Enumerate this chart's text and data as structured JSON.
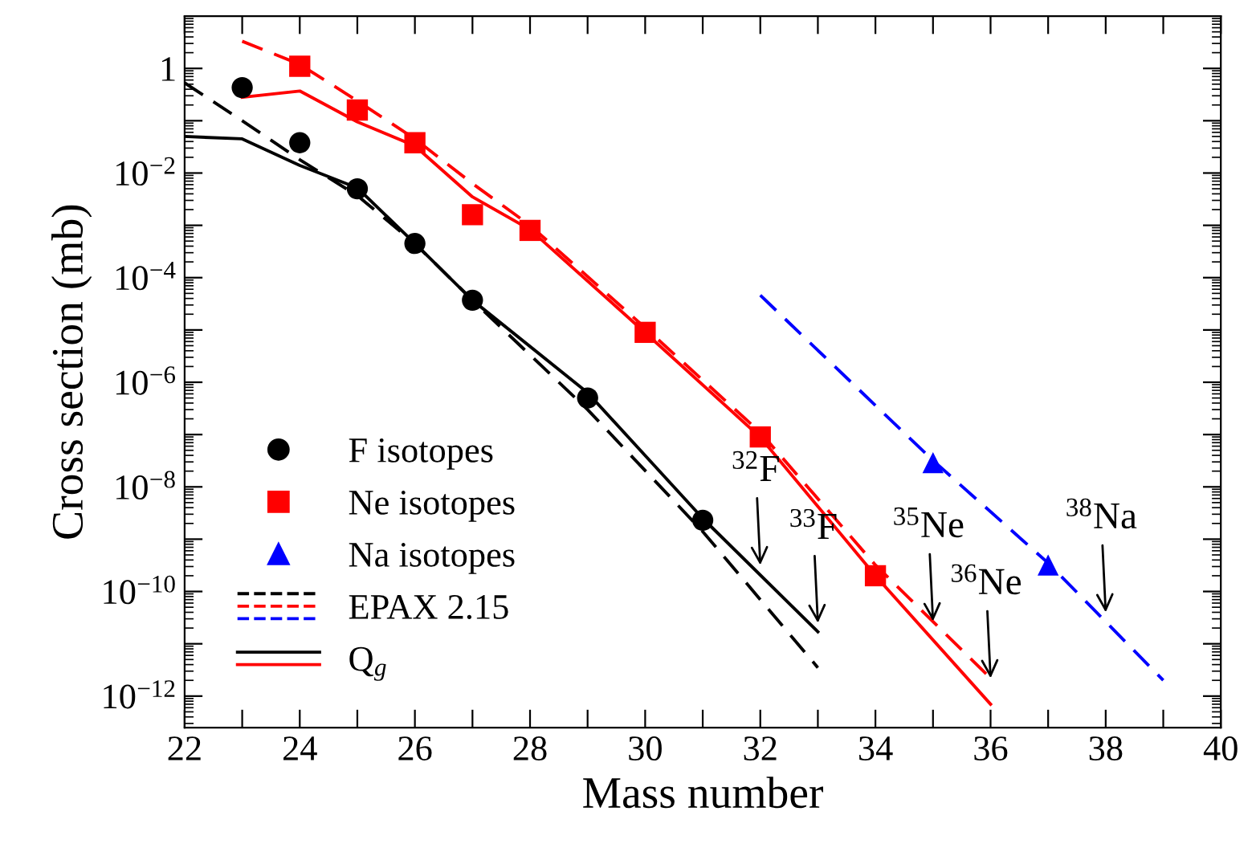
{
  "chart_data": {
    "type": "line",
    "xlabel": "Mass number",
    "ylabel": "Cross section (mb)",
    "log": "y",
    "xlim": [
      22,
      40
    ],
    "ylim": [
      2.5e-13,
      10
    ],
    "xticks": [
      22,
      {
        "value": 23,
        "label": null
      },
      24,
      {
        "value": 25,
        "label": null
      },
      26,
      {
        "value": 27,
        "label": null
      },
      28,
      {
        "value": 29,
        "label": null
      },
      30,
      {
        "value": 31,
        "label": null
      },
      32,
      {
        "value": 33,
        "label": null
      },
      34,
      {
        "value": 35,
        "label": null
      },
      36,
      {
        "value": 37,
        "label": null
      },
      38,
      {
        "value": 39,
        "label": null
      },
      40
    ],
    "yticks": [
      {
        "value": 1,
        "label": "1"
      },
      {
        "value": 0.1,
        "label": null
      },
      {
        "value": 0.01,
        "label": "10$^{−2}$"
      },
      {
        "value": 0.001,
        "label": null
      },
      {
        "value": 0.0001,
        "label": "10$^{−4}$"
      },
      {
        "value": 1e-05,
        "label": null
      },
      {
        "value": 1e-06,
        "label": "10$^{−6}$"
      },
      {
        "value": 1e-07,
        "label": null
      },
      {
        "value": 1e-08,
        "label": "10$^{−8}$"
      },
      {
        "value": 1e-09,
        "label": null
      },
      {
        "value": 1e-10,
        "label": "10$^{−10}$"
      },
      {
        "value": 1e-11,
        "label": null
      },
      {
        "value": 1e-12,
        "label": "10$^{−12}$"
      }
    ],
    "grid": false,
    "legend": "bottom left",
    "series": [
      {
        "name": "F isotopes",
        "type": "scatter",
        "marker": "circle",
        "color": "#000000",
        "x": [
          23,
          24,
          25,
          26,
          27,
          29,
          31
        ],
        "values": [
          0.43,
          0.038,
          0.005,
          0.00045,
          3.7e-05,
          5e-07,
          2.3e-09
        ]
      },
      {
        "name": "Ne isotopes",
        "type": "scatter",
        "marker": "square",
        "color": "#ff0000",
        "x": [
          24,
          25,
          26,
          27,
          28,
          30,
          32,
          34
        ],
        "values": [
          1.1,
          0.16,
          0.038,
          0.0016,
          0.0008,
          9e-06,
          9e-08,
          2e-10
        ]
      },
      {
        "name": "Na isotopes",
        "type": "scatter",
        "marker": "triangle",
        "color": "#0000ff",
        "x": [
          35,
          37
        ],
        "values": [
          2.9e-08,
          3.2e-10
        ]
      },
      {
        "name": "EPAX 2.15",
        "line_style": "dashed",
        "color": "#000000",
        "x": [
          22,
          23,
          24,
          25,
          26,
          27,
          29,
          31,
          33
        ],
        "values": [
          0.53,
          0.1,
          0.018,
          0.0037,
          0.00045,
          3.7e-05,
          3e-07,
          1.4e-09,
          3.5e-12
        ]
      },
      {
        "line_style": "dashed",
        "color": "#ff0000",
        "x": [
          23,
          24,
          25,
          26,
          27,
          28,
          30,
          32,
          34,
          36
        ],
        "values": [
          3.3,
          1.2,
          0.24,
          0.045,
          0.0063,
          0.001,
          1.1e-05,
          1.1e-07,
          3.2e-10,
          2.2e-12
        ]
      },
      {
        "line_style": "dashed",
        "color": "#0000ff",
        "x": [
          32,
          35,
          37,
          39
        ],
        "values": [
          4.6e-05,
          3.2e-08,
          3.5e-10,
          2e-12
        ]
      },
      {
        "name": "Q$_{g}$",
        "line_style": "solid",
        "color": "#000000",
        "x": [
          22,
          23,
          24,
          25,
          26,
          27,
          29,
          31,
          33
        ],
        "values": [
          0.05,
          0.045,
          0.014,
          0.0052,
          0.00045,
          3.7e-05,
          6.3e-07,
          2.5e-09,
          1.7e-11
        ]
      },
      {
        "line_style": "solid",
        "color": "#ff0000",
        "x": [
          23,
          24,
          25,
          26,
          27,
          28,
          30,
          32,
          34,
          36
        ],
        "values": [
          0.28,
          0.37,
          0.095,
          0.033,
          0.0035,
          0.00083,
          8.9e-06,
          8.9e-08,
          2e-10,
          7e-13
        ]
      }
    ],
    "annotations": [
      {
        "text": "$^{32}$F",
        "x": 32,
        "y": 3.2e-10
      },
      {
        "text": "$^{33}$F",
        "x": 33,
        "y": 2.5e-11
      },
      {
        "text": "$^{35}$Ne",
        "x": 35,
        "y": 2.7e-11
      },
      {
        "text": "$^{36}$Ne",
        "x": 36,
        "y": 2.2e-12
      },
      {
        "text": "$^{38}$Na",
        "x": 38,
        "y": 4e-11
      }
    ]
  }
}
